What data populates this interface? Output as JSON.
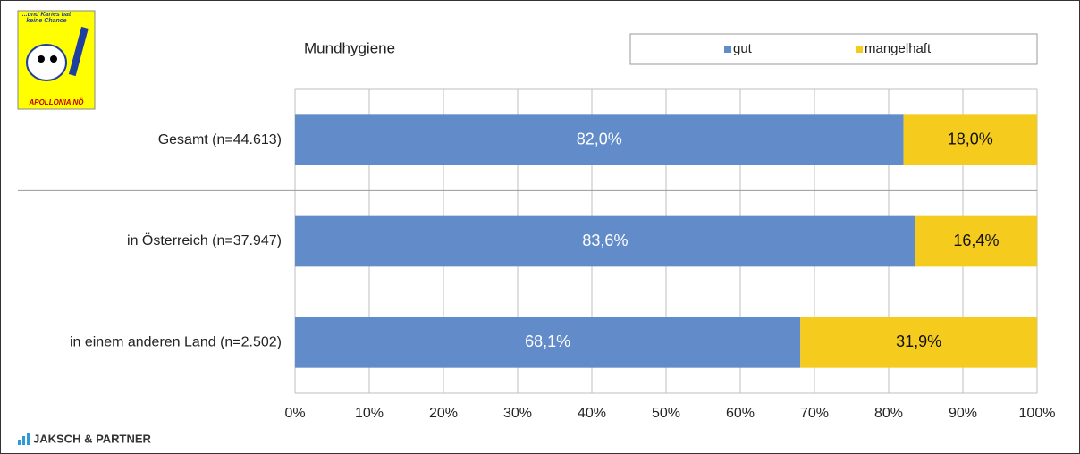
{
  "logo": {
    "caption": "...und Karies hat keine Chance",
    "name": "APOLLONIA NÖ"
  },
  "footer": "JAKSCH & PARTNER",
  "chart_data": {
    "type": "stacked-barh",
    "title": "Mundhygiene",
    "categories": [
      "Gesamt (n=44.613)",
      "in Österreich (n=37.947)",
      "in einem anderen Land (n=2.502)"
    ],
    "series": [
      {
        "name": "gut",
        "color": "#628bc9",
        "values": [
          82.0,
          83.6,
          68.1
        ],
        "value_labels": [
          "82,0%",
          "83,6%",
          "68,1%"
        ]
      },
      {
        "name": "mangelhaft",
        "color": "#f5cc1d",
        "values": [
          18.0,
          16.4,
          31.9
        ],
        "value_labels": [
          "18,0%",
          "16,4%",
          "31,9%"
        ]
      }
    ],
    "xlim": [
      0,
      100
    ],
    "xticks": [
      {
        "value": 0,
        "label": "0%"
      },
      {
        "value": 10,
        "label": "10%"
      },
      {
        "value": 20,
        "label": "20%"
      },
      {
        "value": 30,
        "label": "30%"
      },
      {
        "value": 40,
        "label": "40%"
      },
      {
        "value": 50,
        "label": "50%"
      },
      {
        "value": 60,
        "label": "60%"
      },
      {
        "value": 70,
        "label": "70%"
      },
      {
        "value": 80,
        "label": "80%"
      },
      {
        "value": 90,
        "label": "90%"
      },
      {
        "value": 100,
        "label": "100%"
      }
    ],
    "grid": true,
    "legend": "top"
  }
}
